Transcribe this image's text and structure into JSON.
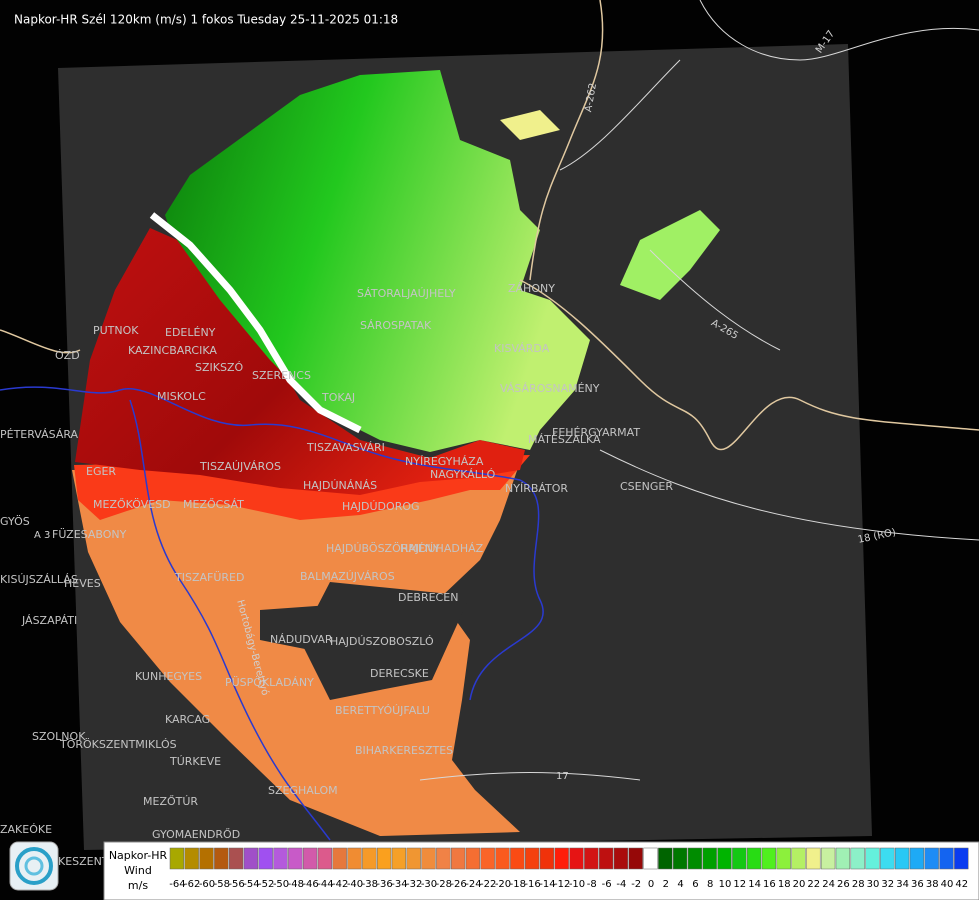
{
  "header": {
    "title": "Napkor-HR Szél 120km (m/s) 1 fokos Tuesday 25-11-2025 01:18"
  },
  "places": [
    {
      "label": "PUTNOK"
    },
    {
      "label": "EDELÉNY"
    },
    {
      "label": "KAZINCBARCIKA"
    },
    {
      "label": "ÓZD"
    },
    {
      "label": "SZIKSZÓ"
    },
    {
      "label": "SZERENCS"
    },
    {
      "label": "MISKOLC"
    },
    {
      "label": "TOKAJ"
    },
    {
      "label": "PÉTERVÁSÁRA"
    },
    {
      "label": "EGER"
    },
    {
      "label": "TISZAÚJVÁROS"
    },
    {
      "label": "TISZAVASVÁRI"
    },
    {
      "label": "NYÍREGYHÁZA"
    },
    {
      "label": "NAGYKÁLLÓ"
    },
    {
      "label": "NYÍRBÁTOR"
    },
    {
      "label": "HAJDÚNÁNÁS"
    },
    {
      "label": "MEZŐKÖVESD"
    },
    {
      "label": "MEZŐCSÁT"
    },
    {
      "label": "HAJDÚDOROG"
    },
    {
      "label": "GYÖS"
    },
    {
      "label": "FÜZESABONY"
    },
    {
      "label": "HAJDÚBÖSZÖRMÉNY"
    },
    {
      "label": "HAJDÚHADHÁZ"
    },
    {
      "label": "TISZAFÜRED"
    },
    {
      "label": "BALMAZÚJVÁROS"
    },
    {
      "label": "HEVES"
    },
    {
      "label": "KISÚJSZÁLLÁS"
    },
    {
      "label": "DEBRECEN"
    },
    {
      "label": "JÁSZAPÁTI"
    },
    {
      "label": "NÁDUDVAR"
    },
    {
      "label": "HAJDÚSZOBOSZLÓ"
    },
    {
      "label": "KUNHEGYES"
    },
    {
      "label": "PÜSPÖKLADÁNY"
    },
    {
      "label": "DERECSKE"
    },
    {
      "label": "KARCAG"
    },
    {
      "label": "BERETTYÓÚJFALU"
    },
    {
      "label": "SZOLNOK"
    },
    {
      "label": "TÖRÖKSZENTMIKLÓS"
    },
    {
      "label": "BIHARKERESZTES"
    },
    {
      "label": "TÚRKEVE"
    },
    {
      "label": "MEZŐTÚR"
    },
    {
      "label": "SZEGHALOM"
    },
    {
      "label": "GYOMAENDRŐD"
    },
    {
      "label": "KESZENTMIKLÓS"
    },
    {
      "label": "SÁTORALJAÚJHELY"
    },
    {
      "label": "SÁROSPATAK"
    },
    {
      "label": "ZÁHONY"
    },
    {
      "label": "KISVÁRDA"
    },
    {
      "label": "VÁSÁROSNAMÉNY"
    },
    {
      "label": "FEHÉRGYARMAT"
    },
    {
      "label": "MÁTÉSZALKA"
    },
    {
      "label": "CSENGER"
    },
    {
      "label": "ZAKEÓKE"
    }
  ],
  "roads": [
    {
      "label": "M-17"
    },
    {
      "label": "A-262"
    },
    {
      "label": "A-265"
    },
    {
      "label": "18 (RO)"
    },
    {
      "label": "17"
    },
    {
      "label": "A 3"
    },
    {
      "label": "Hortobágy-Berettyó"
    }
  ],
  "legend": {
    "title": "Napkor-HR",
    "wind": "Wind",
    "unit": "m/s",
    "values": [
      -64,
      -62,
      -60,
      -58,
      -56,
      -54,
      -52,
      -50,
      -48,
      -46,
      -44,
      -42,
      -40,
      -38,
      -36,
      -34,
      -32,
      -30,
      -28,
      -26,
      -24,
      -22,
      -20,
      -18,
      -16,
      -14,
      -12,
      -10,
      -8,
      -6,
      -4,
      -2,
      0,
      2,
      4,
      6,
      8,
      10,
      12,
      14,
      16,
      18,
      20,
      22,
      24,
      26,
      28,
      30,
      32,
      34,
      36,
      38,
      40,
      42
    ],
    "colors": [
      "#a8a800",
      "#b48c00",
      "#b47000",
      "#b45a10",
      "#aa5050",
      "#a050c8",
      "#a050f0",
      "#b45adc",
      "#c85ac8",
      "#d25aaa",
      "#dc5a8c",
      "#e6783c",
      "#f08c32",
      "#f59a28",
      "#faa01e",
      "#f5a028",
      "#f09632",
      "#f08c3c",
      "#f08246",
      "#f07840",
      "#f56e32",
      "#fa6428",
      "#fa5a1e",
      "#fa4b14",
      "#f5410f",
      "#f0320a",
      "#ff1e0a",
      "#e61414",
      "#d21414",
      "#be1010",
      "#aa0c0c",
      "#960808",
      "#ffffff",
      "#006400",
      "#007800",
      "#008c00",
      "#00a000",
      "#00b400",
      "#14c814",
      "#28dc14",
      "#50f01e",
      "#8cf03c",
      "#b4f064",
      "#f0f08c",
      "#c8f0a0",
      "#a0f0b4",
      "#8cf0c8",
      "#64f0dc",
      "#3cdcf0",
      "#28c8f5",
      "#1eaaf5",
      "#1e8cf5",
      "#1464f0",
      "#0a3cf0"
    ]
  }
}
